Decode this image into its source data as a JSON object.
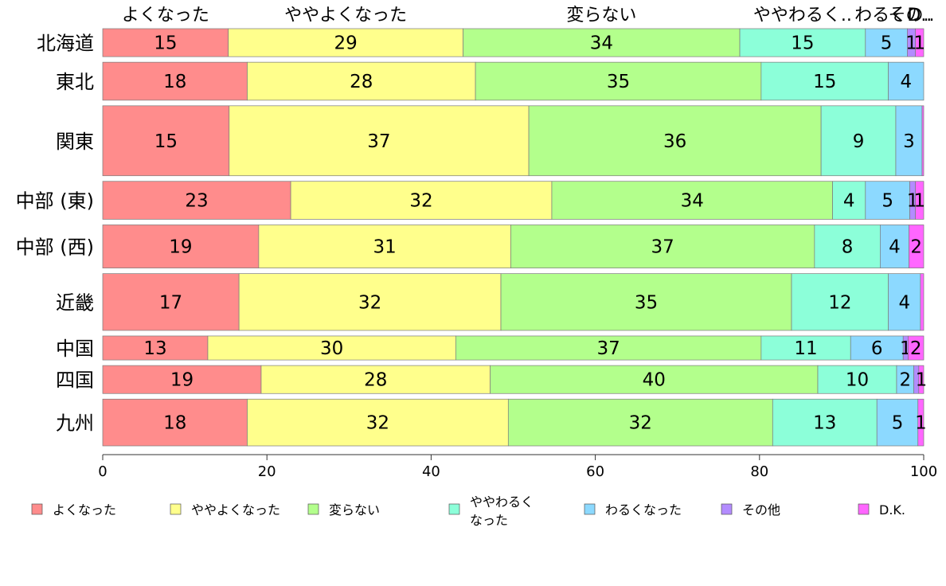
{
  "chart_data": {
    "type": "bar",
    "orientation": "horizontal",
    "stacked": true,
    "title": "",
    "xlabel": "",
    "ylabel": "",
    "xlim": [
      0,
      100
    ],
    "x_ticks": [
      0,
      20,
      40,
      60,
      80,
      100
    ],
    "x_tick_labels": [
      "0",
      "20",
      "40",
      "60",
      "80",
      "100"
    ],
    "grid": false,
    "legend_position": "bottom",
    "categories": [
      "北海道",
      "東北",
      "関東",
      "中部 (東)",
      "中部 (西)",
      "近畿",
      "中国",
      "四国",
      "九州"
    ],
    "row_weights": [
      0.7,
      0.95,
      1.75,
      0.95,
      1.08,
      1.42,
      0.6,
      0.7,
      1.17
    ],
    "top_labels": [
      "よくなった",
      "ややよくなった",
      "変らない",
      "ややわるく..",
      "わるく..",
      "その..",
      "D.."
    ],
    "series": [
      {
        "name": "よくなった",
        "color": "#ff8c8c",
        "values": [
          15.3,
          17.6,
          15.4,
          22.9,
          19.0,
          16.6,
          12.8,
          19.3,
          17.6
        ],
        "labels": [
          "15",
          "18",
          "15",
          "23",
          "19",
          "17",
          "13",
          "19",
          "18"
        ]
      },
      {
        "name": "ややよくなった",
        "color": "#ffff8c",
        "values": [
          28.6,
          27.8,
          36.5,
          31.8,
          30.7,
          31.9,
          30.2,
          27.9,
          31.8
        ],
        "labels": [
          "29",
          "28",
          "37",
          "32",
          "31",
          "32",
          "30",
          "28",
          "32"
        ]
      },
      {
        "name": "変らない",
        "color": "#b3ff8c",
        "values": [
          33.7,
          34.8,
          35.6,
          34.2,
          37.0,
          35.4,
          37.2,
          39.9,
          32.2
        ],
        "labels": [
          "34",
          "35",
          "36",
          "34",
          "37",
          "35",
          "37",
          "40",
          "32"
        ]
      },
      {
        "name": "ややわるくなった",
        "color": "#8cffd9",
        "values": [
          15.3,
          15.5,
          9.1,
          4.0,
          8.0,
          11.8,
          10.9,
          9.6,
          12.7
        ],
        "labels": [
          "15",
          "15",
          "9",
          "4",
          "8",
          "12",
          "11",
          "10",
          "13"
        ]
      },
      {
        "name": "わるくなった",
        "color": "#8cd9ff",
        "values": [
          5.1,
          4.3,
          3.2,
          5.4,
          3.5,
          3.9,
          6.4,
          2.1,
          5.0
        ],
        "labels": [
          "5",
          "4",
          "3",
          "5",
          "4",
          "4",
          "6",
          "2",
          "5"
        ]
      },
      {
        "name": "その他",
        "color": "#b38cff",
        "values": [
          1.0,
          0.0,
          0.0,
          0.7,
          0.0,
          0.0,
          0.6,
          0.6,
          0.0
        ],
        "labels": [
          "1",
          "",
          "",
          "1",
          "",
          "",
          "1",
          "",
          ""
        ]
      },
      {
        "name": "D.K.",
        "color": "#ff66ff",
        "values": [
          1.0,
          0.0,
          0.2,
          1.0,
          1.8,
          0.4,
          1.9,
          0.6,
          0.7
        ],
        "labels": [
          "1",
          "",
          "",
          "1",
          "2",
          "",
          "2",
          "1",
          "1"
        ]
      }
    ]
  },
  "legend": {
    "items": [
      {
        "label": "よくなった",
        "color": "#ff8c8c"
      },
      {
        "label": "ややよくなった",
        "color": "#ffff8c"
      },
      {
        "label": "変らない",
        "color": "#b3ff8c"
      },
      {
        "label": "ややわるく",
        "label_line2": "なった",
        "color": "#8cffd9"
      },
      {
        "label": "わるくなった",
        "color": "#8cd9ff"
      },
      {
        "label": "その他",
        "color": "#b38cff"
      },
      {
        "label": "D.K.",
        "color": "#ff66ff"
      }
    ]
  }
}
